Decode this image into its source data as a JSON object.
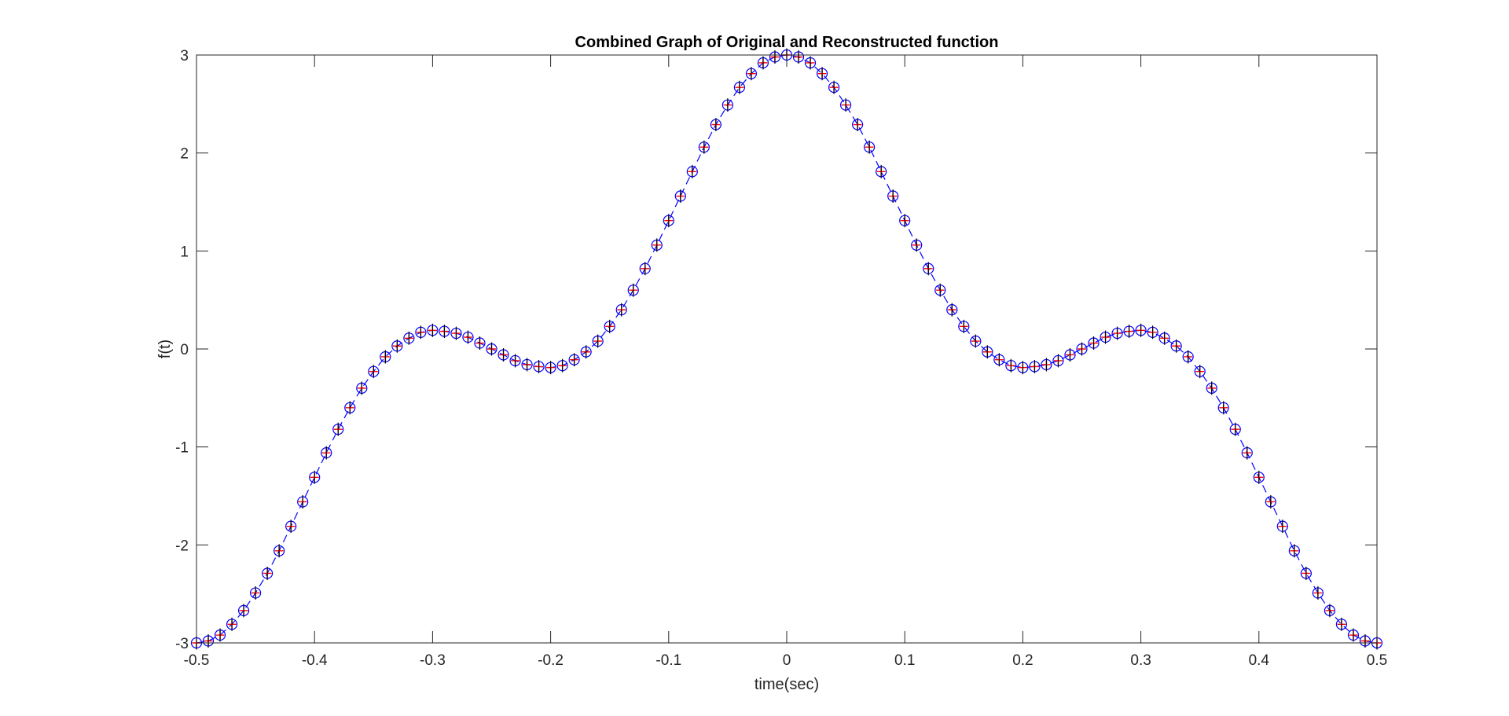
{
  "chart_data": {
    "type": "line",
    "title": "Combined Graph of Original and Reconstructed function",
    "xlabel": "time(sec)",
    "ylabel": "f(t)",
    "xlim": [
      -0.5,
      0.5
    ],
    "ylim": [
      -3,
      3
    ],
    "xticks": [
      -0.5,
      -0.4,
      -0.3,
      -0.2,
      -0.1,
      0,
      0.1,
      0.2,
      0.3,
      0.4,
      0.5
    ],
    "xtick_labels": [
      "-0.5",
      "-0.4",
      "-0.3",
      "-0.2",
      "-0.1",
      "0",
      "0.1",
      "0.2",
      "0.3",
      "0.4",
      "0.5"
    ],
    "yticks": [
      -3,
      -2,
      -1,
      0,
      1,
      2,
      3
    ],
    "ytick_labels": [
      "-3",
      "-2",
      "-1",
      "0",
      "1",
      "2",
      "3"
    ],
    "grid": false,
    "legend": "none",
    "x": [
      -0.5,
      -0.49,
      -0.48,
      -0.47,
      -0.46,
      -0.45,
      -0.44,
      -0.43,
      -0.42,
      -0.41,
      -0.4,
      -0.39,
      -0.38,
      -0.37,
      -0.36,
      -0.35,
      -0.34,
      -0.33,
      -0.32,
      -0.31,
      -0.3,
      -0.29,
      -0.28,
      -0.27,
      -0.26,
      -0.25,
      -0.24,
      -0.23,
      -0.22,
      -0.21,
      -0.2,
      -0.19,
      -0.18,
      -0.17,
      -0.16,
      -0.15,
      -0.14,
      -0.13,
      -0.12,
      -0.11,
      -0.1,
      -0.09,
      -0.08,
      -0.07,
      -0.06,
      -0.05,
      -0.04,
      -0.03,
      -0.02,
      -0.01,
      0,
      0.01,
      0.02,
      0.03,
      0.04,
      0.05,
      0.06,
      0.07,
      0.08,
      0.09,
      0.1,
      0.11,
      0.12,
      0.13,
      0.14,
      0.15,
      0.16,
      0.17,
      0.18,
      0.19,
      0.2,
      0.21,
      0.22,
      0.23,
      0.24,
      0.25,
      0.26,
      0.27,
      0.28,
      0.29,
      0.3,
      0.31,
      0.32,
      0.33,
      0.34,
      0.35,
      0.36,
      0.37,
      0.38,
      0.39,
      0.4,
      0.41,
      0.42,
      0.43,
      0.44,
      0.45,
      0.46,
      0.47,
      0.48,
      0.49,
      0.5
    ],
    "series": [
      {
        "style": "dashed-line-with-circle-markers",
        "color": "#0000ff",
        "values": [
          -3.0,
          -2.98,
          -2.92,
          -2.81,
          -2.67,
          -2.49,
          -2.29,
          -2.06,
          -1.81,
          -1.56,
          -1.31,
          -1.06,
          -0.82,
          -0.6,
          -0.4,
          -0.23,
          -0.08,
          0.03,
          0.11,
          0.17,
          0.19,
          0.18,
          0.16,
          0.12,
          0.06,
          0.0,
          -0.06,
          -0.12,
          -0.16,
          -0.18,
          -0.19,
          -0.17,
          -0.11,
          -0.03,
          0.08,
          0.23,
          0.4,
          0.6,
          0.82,
          1.06,
          1.31,
          1.56,
          1.81,
          2.06,
          2.29,
          2.49,
          2.67,
          2.81,
          2.92,
          2.98,
          3.0,
          2.98,
          2.92,
          2.81,
          2.67,
          2.49,
          2.29,
          2.06,
          1.81,
          1.56,
          1.31,
          1.06,
          0.82,
          0.6,
          0.4,
          0.23,
          0.08,
          -0.03,
          -0.11,
          -0.17,
          -0.19,
          -0.18,
          -0.16,
          -0.12,
          -0.06,
          0.0,
          0.06,
          0.12,
          0.16,
          0.18,
          0.19,
          0.17,
          0.11,
          0.03,
          -0.08,
          -0.23,
          -0.4,
          -0.6,
          -0.82,
          -1.06,
          -1.31,
          -1.56,
          -1.81,
          -2.06,
          -2.29,
          -2.49,
          -2.67,
          -2.81,
          -2.92,
          -2.98,
          -3.0
        ]
      },
      {
        "style": "plus-markers",
        "color": "#ff0000",
        "values": [
          -3.0,
          -2.98,
          -2.92,
          -2.81,
          -2.67,
          -2.49,
          -2.29,
          -2.06,
          -1.81,
          -1.56,
          -1.31,
          -1.06,
          -0.82,
          -0.6,
          -0.4,
          -0.23,
          -0.08,
          0.03,
          0.11,
          0.17,
          0.19,
          0.18,
          0.16,
          0.12,
          0.06,
          0.0,
          -0.06,
          -0.12,
          -0.16,
          -0.18,
          -0.19,
          -0.17,
          -0.11,
          -0.03,
          0.08,
          0.23,
          0.4,
          0.6,
          0.82,
          1.06,
          1.31,
          1.56,
          1.81,
          2.06,
          2.29,
          2.49,
          2.67,
          2.81,
          2.92,
          2.98,
          3.0,
          2.98,
          2.92,
          2.81,
          2.67,
          2.49,
          2.29,
          2.06,
          1.81,
          1.56,
          1.31,
          1.06,
          0.82,
          0.6,
          0.4,
          0.23,
          0.08,
          -0.03,
          -0.11,
          -0.17,
          -0.19,
          -0.18,
          -0.16,
          -0.12,
          -0.06,
          0.0,
          0.06,
          0.12,
          0.16,
          0.18,
          0.19,
          0.17,
          0.11,
          0.03,
          -0.08,
          -0.23,
          -0.4,
          -0.6,
          -0.82,
          -1.06,
          -1.31,
          -1.56,
          -1.81,
          -2.06,
          -2.29,
          -2.49,
          -2.67,
          -2.81,
          -2.92,
          -2.98,
          -3.0
        ]
      },
      {
        "style": "vertical-tick-markers",
        "color": "#000000",
        "values": [
          -3.0,
          -2.98,
          -2.92,
          -2.81,
          -2.67,
          -2.49,
          -2.29,
          -2.06,
          -1.81,
          -1.56,
          -1.31,
          -1.06,
          -0.82,
          -0.6,
          -0.4,
          -0.23,
          -0.08,
          0.03,
          0.11,
          0.17,
          0.19,
          0.18,
          0.16,
          0.12,
          0.06,
          0.0,
          -0.06,
          -0.12,
          -0.16,
          -0.18,
          -0.19,
          -0.17,
          -0.11,
          -0.03,
          0.08,
          0.23,
          0.4,
          0.6,
          0.82,
          1.06,
          1.31,
          1.56,
          1.81,
          2.06,
          2.29,
          2.49,
          2.67,
          2.81,
          2.92,
          2.98,
          3.0,
          2.98,
          2.92,
          2.81,
          2.67,
          2.49,
          2.29,
          2.06,
          1.81,
          1.56,
          1.31,
          1.06,
          0.82,
          0.6,
          0.4,
          0.23,
          0.08,
          -0.03,
          -0.11,
          -0.17,
          -0.19,
          -0.18,
          -0.16,
          -0.12,
          -0.06,
          0.0,
          0.06,
          0.12,
          0.16,
          0.18,
          0.19,
          0.17,
          0.11,
          0.03,
          -0.08,
          -0.23,
          -0.4,
          -0.6,
          -0.82,
          -1.06,
          -1.31,
          -1.56,
          -1.81,
          -2.06,
          -2.29,
          -2.49,
          -2.67,
          -2.81,
          -2.92,
          -2.98,
          -3.0
        ]
      }
    ]
  }
}
